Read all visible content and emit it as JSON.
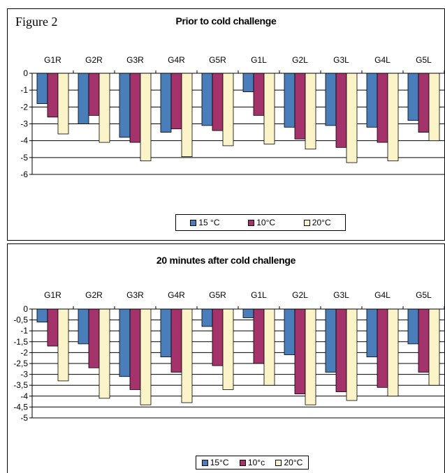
{
  "figure_label": "Figure 2",
  "colors": {
    "s15": "#4a7ebb",
    "s10": "#a4336c",
    "s20": "#fbf4c8"
  },
  "chart_data": [
    {
      "type": "bar",
      "title": "Prior to cold challenge",
      "categories": [
        "G1R",
        "G2R",
        "G3R",
        "G4R",
        "G5R",
        "G1L",
        "G2L",
        "G3L",
        "G4L",
        "G5L"
      ],
      "series": [
        {
          "name": "15 °C",
          "values": [
            -1.8,
            -3.0,
            -3.8,
            -3.5,
            -3.1,
            -1.1,
            -3.2,
            -3.1,
            -3.2,
            -2.8
          ]
        },
        {
          "name": "10°C",
          "values": [
            -2.6,
            -2.5,
            -4.1,
            -3.3,
            -3.4,
            -2.5,
            -3.9,
            -4.4,
            -4.1,
            -3.5
          ]
        },
        {
          "name": "20°C",
          "values": [
            -3.6,
            -4.1,
            -5.2,
            -4.95,
            -4.3,
            -4.2,
            -4.5,
            -5.3,
            -5.2,
            -4.0
          ]
        }
      ],
      "ylim": [
        -6,
        0
      ],
      "yticks": [
        0,
        -1,
        -2,
        -3,
        -4,
        -5,
        -6
      ],
      "ytick_labels": [
        "0",
        "-1",
        "-2",
        "-3",
        "-4",
        "-5",
        "-6"
      ],
      "grid": true,
      "legend_position": "bottom"
    },
    {
      "type": "bar",
      "title": "20 minutes after cold challenge",
      "categories": [
        "G1R",
        "G2R",
        "G3R",
        "G4R",
        "G5R",
        "G1L",
        "G2L",
        "G3L",
        "G4L",
        "G5L"
      ],
      "series": [
        {
          "name": "15°C",
          "values": [
            -0.6,
            -1.6,
            -3.1,
            -2.2,
            -0.8,
            -0.4,
            -2.1,
            -2.9,
            -2.2,
            -1.6
          ]
        },
        {
          "name": "10°c",
          "values": [
            -1.7,
            -2.7,
            -3.7,
            -2.9,
            -2.6,
            -2.5,
            -3.9,
            -3.8,
            -3.6,
            -2.9
          ]
        },
        {
          "name": "20°C",
          "values": [
            -3.3,
            -4.1,
            -4.4,
            -4.3,
            -3.7,
            -3.5,
            -4.4,
            -4.2,
            -4.0,
            -3.5
          ]
        }
      ],
      "ylim": [
        -5,
        0
      ],
      "yticks": [
        0,
        -0.5,
        -1,
        -1.5,
        -2,
        -2.5,
        -3,
        -3.5,
        -4,
        -4.5,
        -5
      ],
      "ytick_labels": [
        "0",
        "-0,5",
        "-1",
        "-1,5",
        "-2",
        "-2,5",
        "-3",
        "-3,5",
        "-4",
        "-4,5",
        "-5"
      ],
      "grid": true,
      "legend_position": "bottom"
    }
  ]
}
